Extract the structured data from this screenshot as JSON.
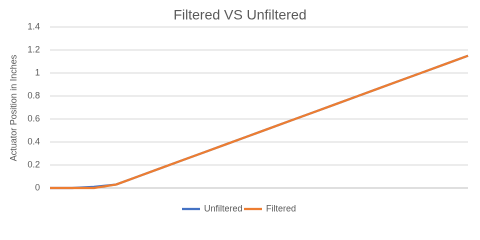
{
  "chart_data": {
    "type": "line",
    "title": "Filtered VS Unfiltered",
    "y_label": "Actuator Position in Inches",
    "series": [
      {
        "name": "Unfiltered",
        "color": "#4472c4",
        "values": [
          0,
          0,
          0.01,
          0.03,
          0.1,
          0.17,
          0.24,
          0.31,
          0.38,
          0.45,
          0.52,
          0.59,
          0.66,
          0.73,
          0.8,
          0.87,
          0.94,
          1.01,
          1.08,
          1.15
        ]
      },
      {
        "name": "Filtered",
        "color": "#ed7d31",
        "values": [
          0,
          0,
          0,
          0.03,
          0.1,
          0.17,
          0.24,
          0.31,
          0.38,
          0.45,
          0.52,
          0.59,
          0.66,
          0.73,
          0.8,
          0.87,
          0.94,
          1.01,
          1.08,
          1.15
        ]
      }
    ],
    "ylim": [
      0,
      1.4
    ],
    "yticks": [
      0,
      {
        "value": 0.2,
        "label": "0.2"
      },
      {
        "value": 0.4,
        "label": "0.4"
      },
      {
        "value": 0.6,
        "label": "0.6"
      },
      {
        "value": 0.8,
        "label": "0.8"
      },
      1,
      {
        "value": 1.2,
        "label": "1.2"
      },
      {
        "value": 1.4,
        "label": "1.4"
      }
    ],
    "grid": true,
    "legend": "bottom"
  }
}
